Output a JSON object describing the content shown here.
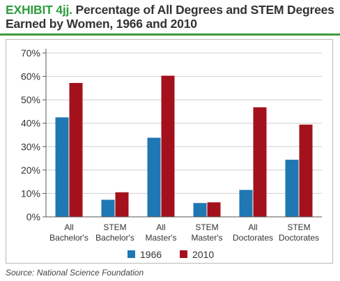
{
  "header": {
    "exhibit_label": "EXHIBIT 4jj.",
    "title_line1": "Percentage of All Degrees and STEM Degrees",
    "title_line2": "Earned by Women, 1966 and 2010"
  },
  "source": "Source: National Science Foundation",
  "chart_data": {
    "type": "bar",
    "categories": [
      [
        "All",
        "Bachelor's"
      ],
      [
        "STEM",
        "Bachelor's"
      ],
      [
        "All",
        "Master's"
      ],
      [
        "STEM",
        "Master's"
      ],
      [
        "All",
        "Doctorates"
      ],
      [
        "STEM",
        "Doctorates"
      ]
    ],
    "series": [
      {
        "name": "1966",
        "color": "#1f77b4",
        "values": [
          42.5,
          7.3,
          33.8,
          5.9,
          11.5,
          24.4
        ]
      },
      {
        "name": "2010",
        "color": "#a3111c",
        "values": [
          57.2,
          10.5,
          60.3,
          6.2,
          46.8,
          39.4
        ]
      }
    ],
    "ylim": [
      0,
      70
    ],
    "yticks": [
      0,
      10,
      20,
      30,
      40,
      50,
      60,
      70
    ],
    "ytick_labels": [
      "0%",
      "10%",
      "20%",
      "30%",
      "40%",
      "50%",
      "60%",
      "70%"
    ],
    "grid": true,
    "legend_position": "bottom"
  }
}
